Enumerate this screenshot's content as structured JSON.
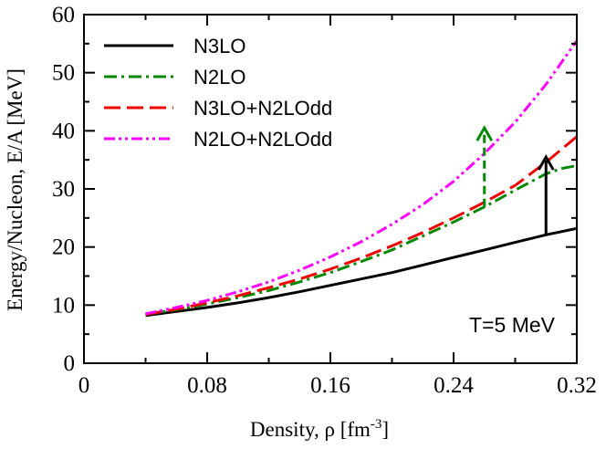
{
  "chart_data": {
    "type": "line",
    "xlabel": "Density, ρ [fm",
    "xlabel_sup": "-3",
    "xlabel_end": "]",
    "ylabel": "Energy/Nucleon, E/A [MeV]",
    "xlim": [
      0,
      0.32
    ],
    "ylim": [
      0,
      60
    ],
    "xticks": [
      0,
      0.08,
      0.16,
      0.24,
      0.32
    ],
    "xtick_labels": [
      "0",
      "0.08",
      "0.16",
      "0.24",
      "0.32"
    ],
    "yticks": [
      0,
      10,
      20,
      30,
      40,
      50,
      60
    ],
    "ytick_labels": [
      "0",
      "10",
      "20",
      "30",
      "40",
      "50",
      "60"
    ],
    "grid": false,
    "legend_position": "top-left",
    "annotation": "T=5 MeV",
    "series": [
      {
        "name": "N3LO",
        "color": "#000000",
        "style": "solid",
        "x": [
          0.04,
          0.06,
          0.08,
          0.1,
          0.12,
          0.14,
          0.16,
          0.18,
          0.2,
          0.22,
          0.24,
          0.26,
          0.28,
          0.3,
          0.32
        ],
        "y": [
          8.2,
          8.9,
          9.6,
          10.4,
          11.3,
          12.3,
          13.4,
          14.5,
          15.6,
          16.9,
          18.2,
          19.5,
          20.8,
          22.1,
          23.2
        ]
      },
      {
        "name": "N2LO",
        "color": "#008800",
        "style": "dashdot",
        "x": [
          0.04,
          0.06,
          0.08,
          0.1,
          0.12,
          0.14,
          0.16,
          0.18,
          0.2,
          0.22,
          0.24,
          0.26,
          0.28,
          0.3,
          0.31,
          0.32
        ],
        "y": [
          8.4,
          9.2,
          10.2,
          11.3,
          12.5,
          14.0,
          15.6,
          17.5,
          19.5,
          21.9,
          24.3,
          26.9,
          29.8,
          32.6,
          33.5,
          34.0
        ]
      },
      {
        "name": "N3LO+N2LOdd",
        "color": "#ee0000",
        "style": "dashed",
        "x": [
          0.04,
          0.06,
          0.08,
          0.1,
          0.12,
          0.14,
          0.16,
          0.18,
          0.2,
          0.22,
          0.24,
          0.26,
          0.28,
          0.3,
          0.32
        ],
        "y": [
          8.4,
          9.3,
          10.4,
          11.6,
          13.0,
          14.5,
          16.2,
          18.1,
          20.2,
          22.5,
          25.0,
          27.7,
          30.6,
          34.6,
          39.0
        ]
      },
      {
        "name": "N2LO+N2LOdd",
        "color": "#ff00ff",
        "style": "dashdotdot",
        "x": [
          0.04,
          0.06,
          0.08,
          0.1,
          0.12,
          0.14,
          0.16,
          0.18,
          0.2,
          0.22,
          0.24,
          0.26,
          0.28,
          0.3,
          0.32
        ],
        "y": [
          8.5,
          9.6,
          10.8,
          12.3,
          14.0,
          16.0,
          18.3,
          20.9,
          23.9,
          27.3,
          31.3,
          36.1,
          41.5,
          48.0,
          55.5
        ]
      }
    ],
    "arrows": [
      {
        "name": "n2lo-arrow",
        "color": "#008800",
        "style": "dashed",
        "x": 0.26,
        "y_from": 26.9,
        "y_to": 40.5
      },
      {
        "name": "n3lo-arrow",
        "color": "#000000",
        "style": "solid",
        "x": 0.3,
        "y_from": 22.1,
        "y_to": 35.5
      }
    ]
  }
}
